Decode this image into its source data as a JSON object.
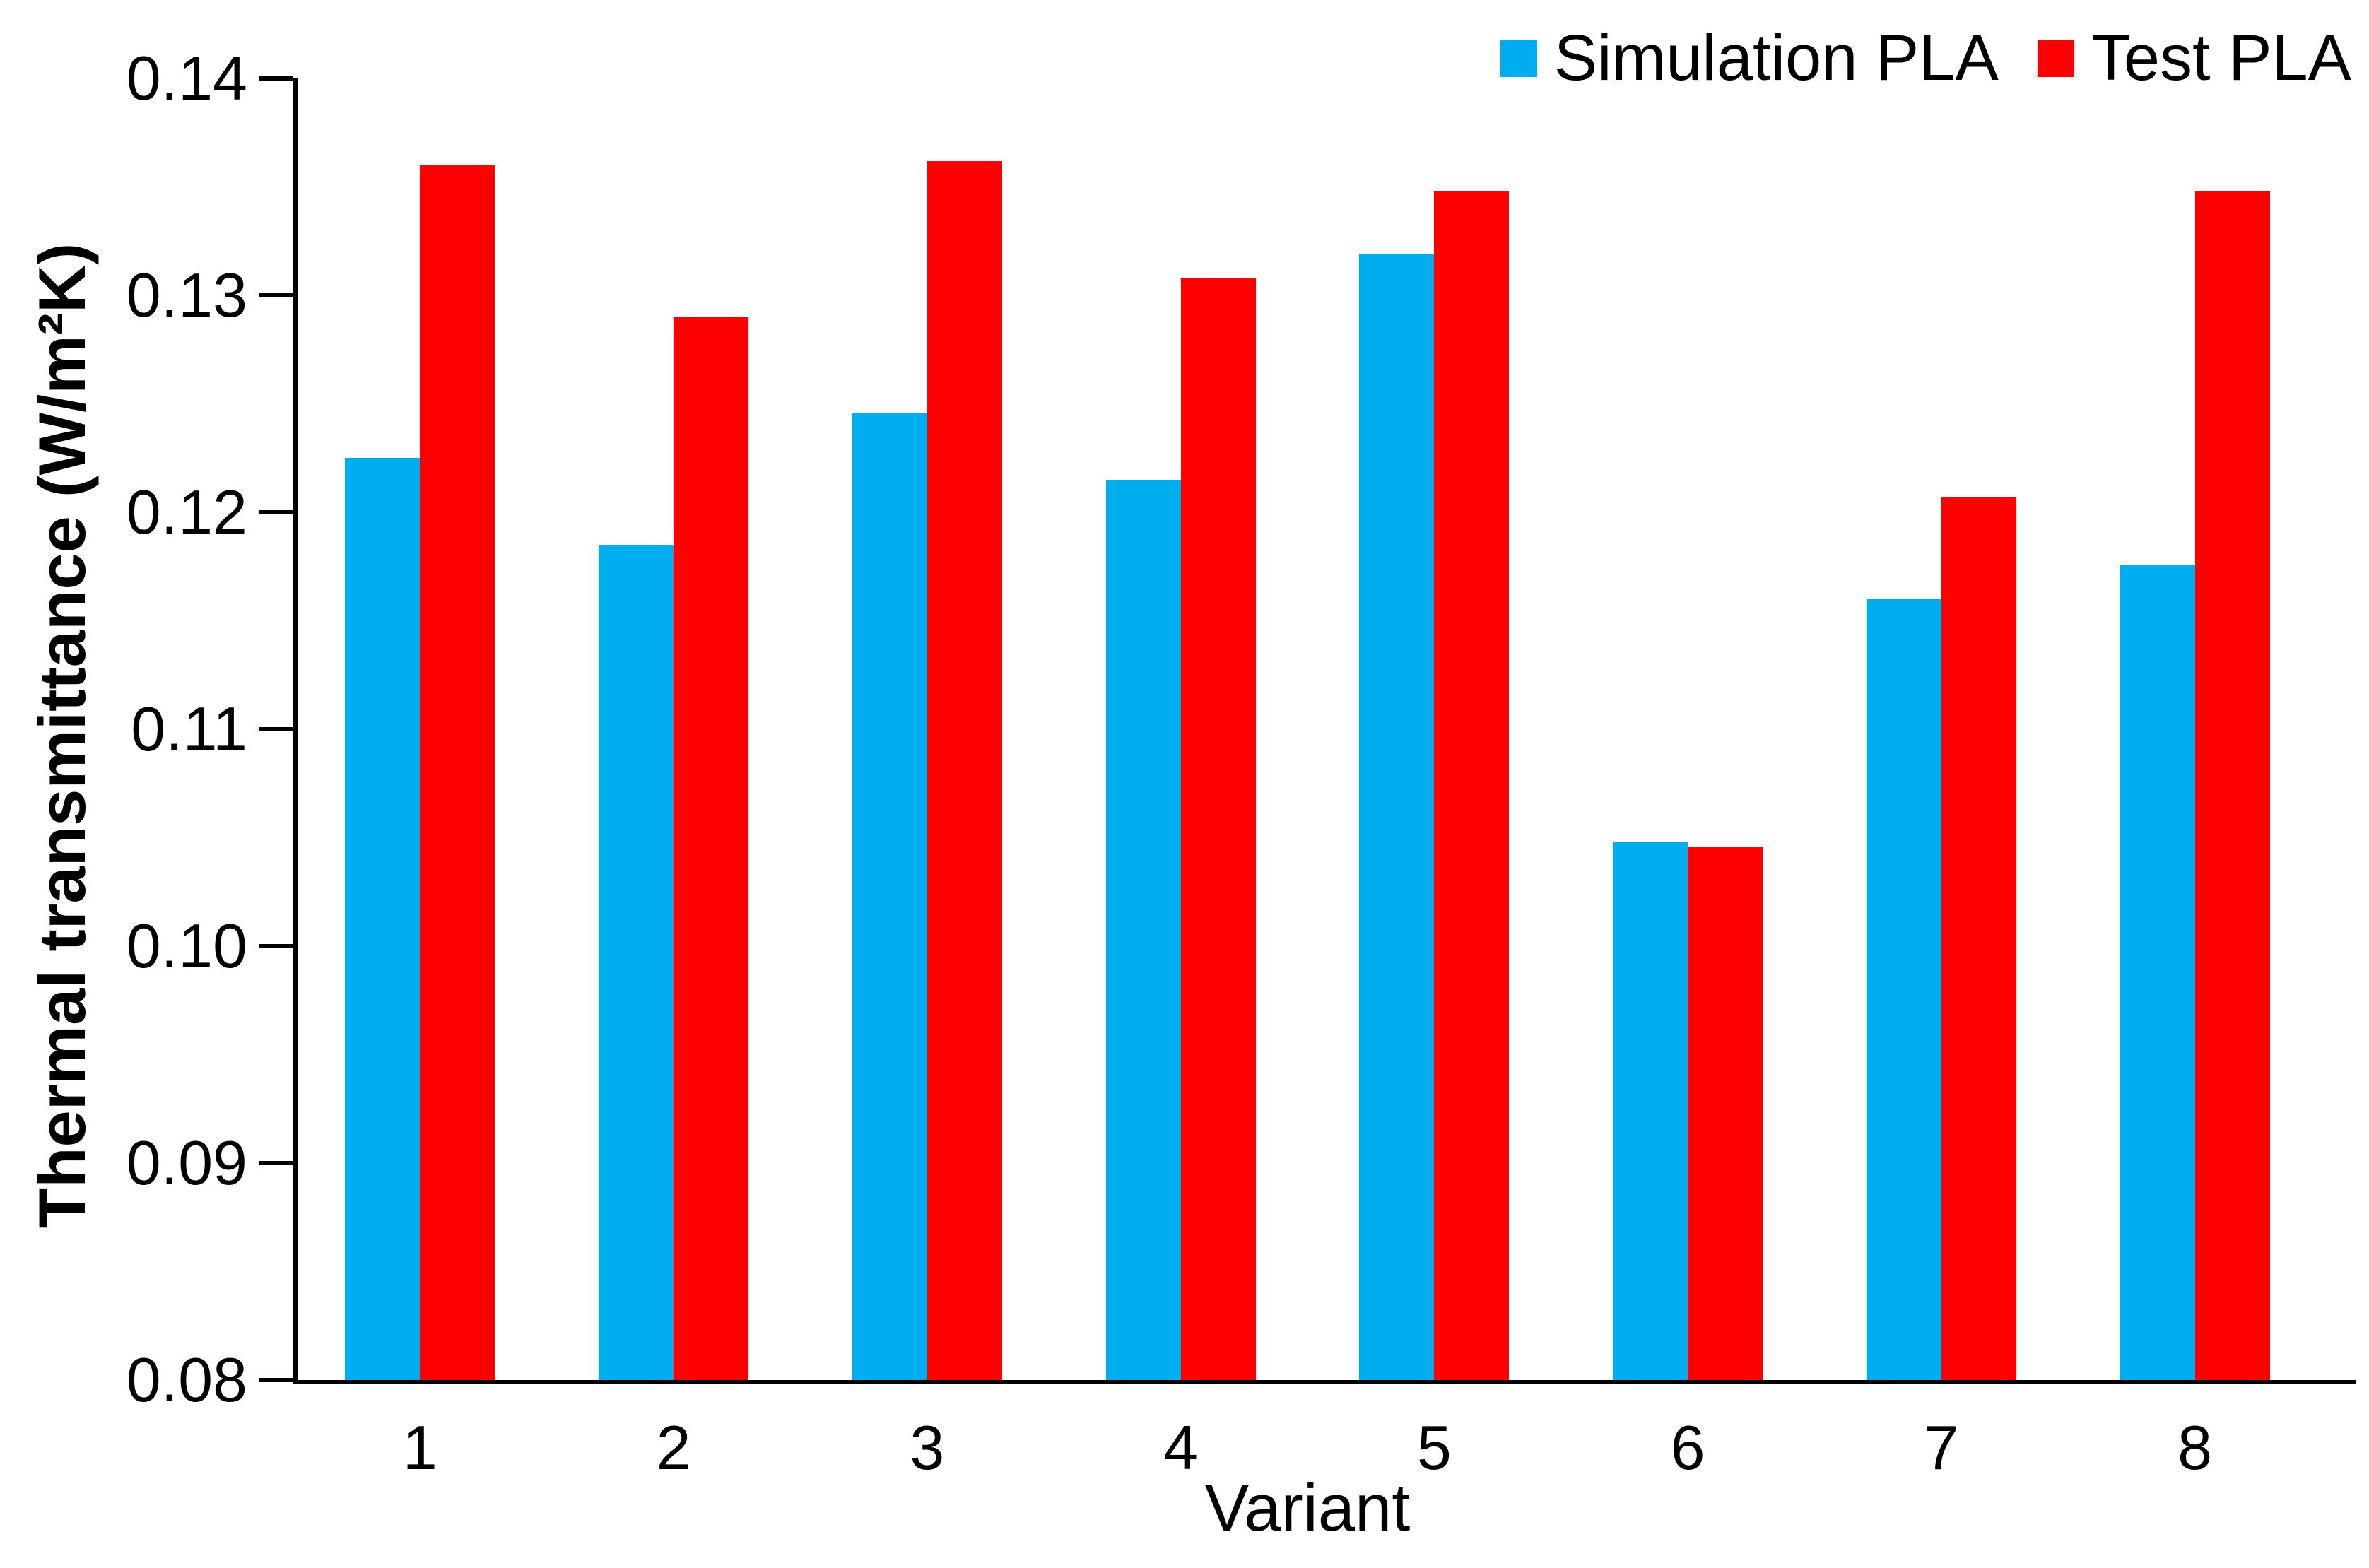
{
  "chart_data": {
    "type": "bar",
    "title": "",
    "xlabel": "Variant",
    "ylabel": "Thermal transmittance (W/m²K)",
    "categories": [
      "1",
      "2",
      "3",
      "4",
      "5",
      "6",
      "7",
      "8"
    ],
    "series": [
      {
        "name": "Simulation PLA",
        "color": "#00AEEF",
        "values": [
          0.1225,
          0.1185,
          0.1246,
          0.1215,
          0.1319,
          0.1048,
          0.116,
          0.1176
        ]
      },
      {
        "name": "Test PLA",
        "color": "#FF0000",
        "values": [
          0.136,
          0.129,
          0.1362,
          0.1308,
          0.1348,
          0.1046,
          0.1207,
          0.1348
        ]
      }
    ],
    "ylim": [
      0.08,
      0.14
    ],
    "ytick_step": 0.01,
    "ytick_labels": [
      "0.08",
      "0.09",
      "0.10",
      "0.11",
      "0.12",
      "0.13",
      "0.14"
    ],
    "grid": false,
    "legend_position": "top-right",
    "axis_color": "#000000",
    "background_color": "#FFFFFF"
  }
}
